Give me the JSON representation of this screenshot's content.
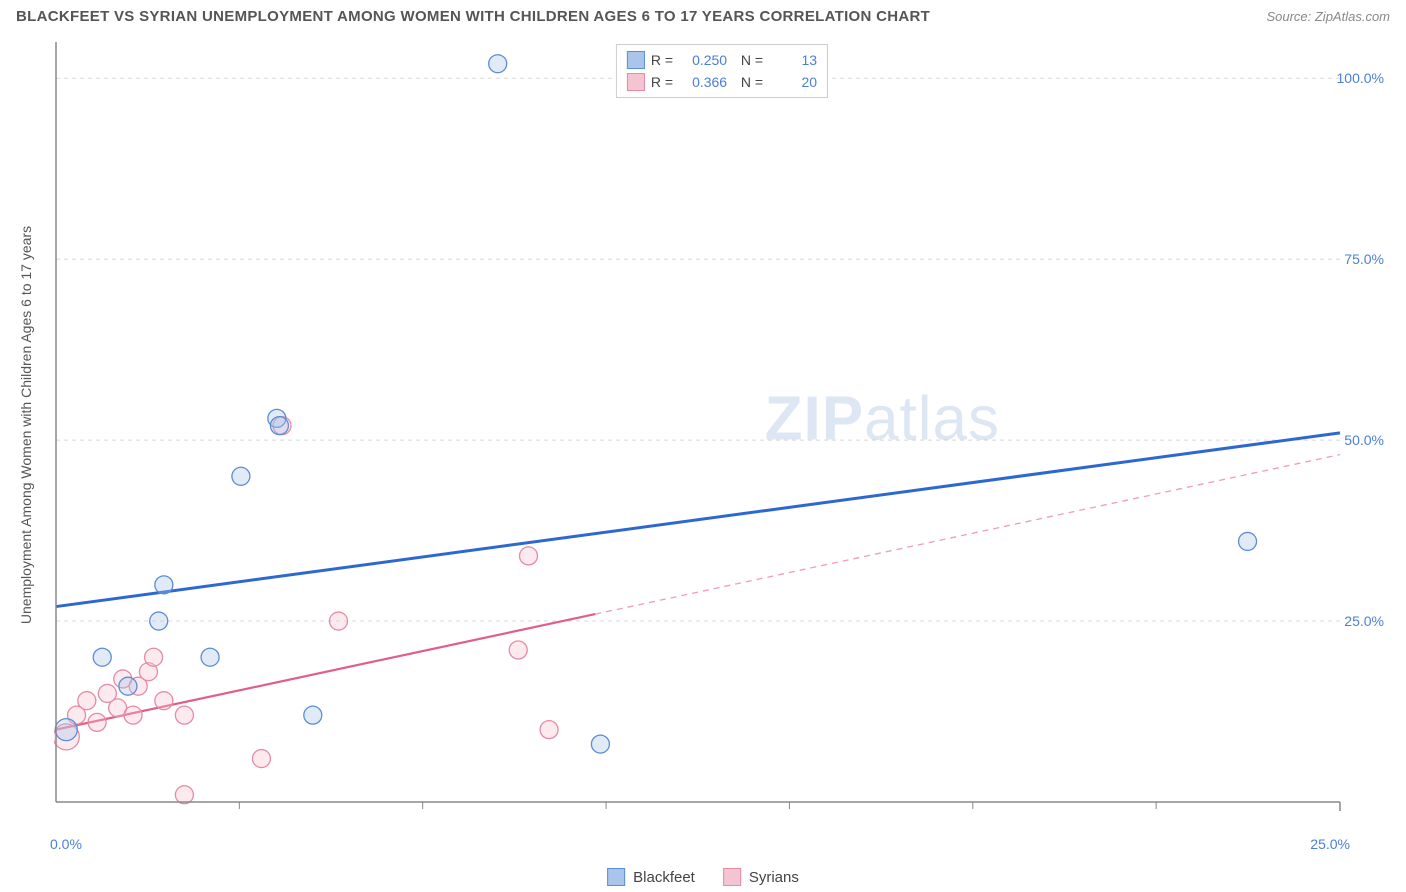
{
  "header": {
    "title": "BLACKFEET VS SYRIAN UNEMPLOYMENT AMONG WOMEN WITH CHILDREN AGES 6 TO 17 YEARS CORRELATION CHART",
    "source": "Source: ZipAtlas.com"
  },
  "ylabel": "Unemployment Among Women with Children Ages 6 to 17 years",
  "watermark": {
    "bold": "ZIP",
    "rest": "atlas"
  },
  "chart": {
    "type": "scatter",
    "xlim": [
      0,
      25
    ],
    "ylim": [
      0,
      105
    ],
    "ytick_values": [
      25,
      50,
      75,
      100
    ],
    "ytick_labels": [
      "25.0%",
      "50.0%",
      "75.0%",
      "100.0%"
    ],
    "xtick_values": [
      0,
      25
    ],
    "xtick_labels": [
      "0.0%",
      "25.0%"
    ],
    "x_minor_ticks": [
      3.57,
      7.14,
      10.71,
      14.28,
      17.85,
      21.42
    ],
    "grid_color": "#d8d8d8",
    "axis_color": "#888888",
    "background_color": "#ffffff",
    "marker_radius": 9,
    "marker_stroke_width": 1.3,
    "marker_fill_opacity": 0.35,
    "series": [
      {
        "name": "Blackfeet",
        "color_stroke": "#5b8dd6",
        "color_fill": "#a9c5ec",
        "R": "0.250",
        "N": "13",
        "trend": {
          "x1": 0,
          "y1": 27,
          "x2": 25,
          "y2": 51,
          "dash": false,
          "width": 3,
          "color": "#2c68cf"
        },
        "points": [
          {
            "x": 0.2,
            "y": 10,
            "r": 11
          },
          {
            "x": 0.9,
            "y": 20
          },
          {
            "x": 1.4,
            "y": 16
          },
          {
            "x": 2.0,
            "y": 25
          },
          {
            "x": 2.1,
            "y": 30
          },
          {
            "x": 3.0,
            "y": 20
          },
          {
            "x": 3.6,
            "y": 45
          },
          {
            "x": 4.3,
            "y": 53
          },
          {
            "x": 4.35,
            "y": 52
          },
          {
            "x": 5.0,
            "y": 12
          },
          {
            "x": 8.6,
            "y": 102
          },
          {
            "x": 10.6,
            "y": 8
          },
          {
            "x": 23.2,
            "y": 36
          }
        ]
      },
      {
        "name": "Syrians",
        "color_stroke": "#e68aa5",
        "color_fill": "#f5c4d2",
        "R": "0.366",
        "N": "20",
        "trend": {
          "x1": 0,
          "y1": 10,
          "x2": 25,
          "y2": 48,
          "dash_from_x": 10.5,
          "width": 2.2,
          "color": "#e15e87"
        },
        "points": [
          {
            "x": 0.2,
            "y": 9,
            "r": 13
          },
          {
            "x": 0.4,
            "y": 12
          },
          {
            "x": 0.6,
            "y": 14
          },
          {
            "x": 0.8,
            "y": 11
          },
          {
            "x": 1.0,
            "y": 15
          },
          {
            "x": 1.2,
            "y": 13
          },
          {
            "x": 1.3,
            "y": 17
          },
          {
            "x": 1.5,
            "y": 12
          },
          {
            "x": 1.6,
            "y": 16
          },
          {
            "x": 1.8,
            "y": 18
          },
          {
            "x": 1.9,
            "y": 20
          },
          {
            "x": 2.1,
            "y": 14
          },
          {
            "x": 2.5,
            "y": 1
          },
          {
            "x": 2.5,
            "y": 12
          },
          {
            "x": 4.0,
            "y": 6
          },
          {
            "x": 4.4,
            "y": 52
          },
          {
            "x": 5.5,
            "y": 25
          },
          {
            "x": 9.0,
            "y": 21
          },
          {
            "x": 9.2,
            "y": 34
          },
          {
            "x": 9.6,
            "y": 10
          }
        ]
      }
    ]
  },
  "legend_bottom": [
    {
      "label": "Blackfeet",
      "fill": "#a9c5ec",
      "stroke": "#5b8dd6"
    },
    {
      "label": "Syrians",
      "fill": "#f5c4d2",
      "stroke": "#e68aa5"
    }
  ]
}
